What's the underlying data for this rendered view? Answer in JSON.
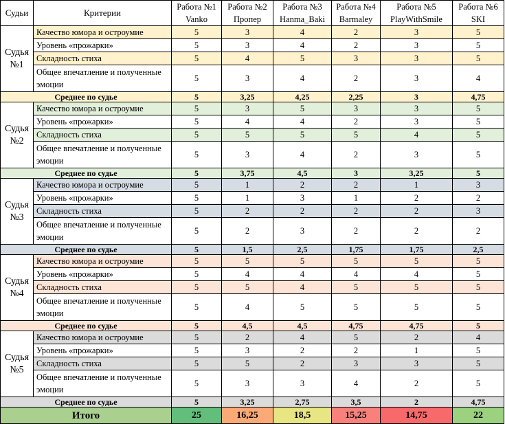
{
  "headers": {
    "judges_col": "Судьи",
    "criteria_col": "Критерии",
    "works": [
      {
        "title": "Работа №1",
        "author": "Vanko"
      },
      {
        "title": "Работа №2",
        "author": "Пропер"
      },
      {
        "title": "Работа №3",
        "author": "Hanma_Baki"
      },
      {
        "title": "Работа №4",
        "author": "Barmaley"
      },
      {
        "title": "Работа №5",
        "author": "PlayWithSmile"
      },
      {
        "title": "Работа №6",
        "author": "SKI"
      }
    ]
  },
  "criteria": [
    "Качество юмора и остроумие",
    "Уровень «прожарки»",
    "Складность стиха",
    "Общее впечатление и полученные эмоции"
  ],
  "average_label": "Среднее по судье",
  "judges": [
    {
      "line1": "Судья",
      "line2": "№1",
      "tint": "#fff2cc",
      "scores": [
        [
          "5",
          "3",
          "4",
          "2",
          "3",
          "5"
        ],
        [
          "5",
          "3",
          "4",
          "2",
          "3",
          "5"
        ],
        [
          "5",
          "4",
          "5",
          "3",
          "3",
          "5"
        ],
        [
          "5",
          "3",
          "4",
          "2",
          "3",
          "4"
        ]
      ],
      "average": [
        "5",
        "3,25",
        "4,25",
        "2,25",
        "3",
        "4,75"
      ]
    },
    {
      "line1": "Судья",
      "line2": "№2",
      "tint": "#e2efda",
      "scores": [
        [
          "5",
          "3",
          "5",
          "3",
          "3",
          "5"
        ],
        [
          "5",
          "4",
          "4",
          "2",
          "3",
          "5"
        ],
        [
          "5",
          "5",
          "5",
          "5",
          "4",
          "5"
        ],
        [
          "5",
          "3",
          "4",
          "2",
          "3",
          "5"
        ]
      ],
      "average": [
        "5",
        "3,75",
        "4,5",
        "3",
        "3,25",
        "5"
      ]
    },
    {
      "line1": "Судья",
      "line2": "№3",
      "tint": "#d6dce4",
      "scores": [
        [
          "5",
          "1",
          "2",
          "2",
          "1",
          "3"
        ],
        [
          "5",
          "1",
          "3",
          "1",
          "2",
          "2"
        ],
        [
          "5",
          "2",
          "2",
          "2",
          "2",
          "3"
        ],
        [
          "5",
          "2",
          "3",
          "2",
          "2",
          "2"
        ]
      ],
      "average": [
        "5",
        "1,5",
        "2,5",
        "1,75",
        "1,75",
        "2,5"
      ]
    },
    {
      "line1": "Судья",
      "line2": "№4",
      "tint": "#fce4d6",
      "scores": [
        [
          "5",
          "5",
          "5",
          "5",
          "5",
          "5"
        ],
        [
          "5",
          "4",
          "4",
          "4",
          "4",
          "5"
        ],
        [
          "5",
          "5",
          "4",
          "5",
          "5",
          "5"
        ],
        [
          "5",
          "4",
          "5",
          "5",
          "5",
          "5"
        ]
      ],
      "average": [
        "5",
        "4,5",
        "4,5",
        "4,75",
        "4,75",
        "5"
      ]
    },
    {
      "line1": "Судья",
      "line2": "№5",
      "tint": "#dbdbdb",
      "scores": [
        [
          "5",
          "2",
          "4",
          "5",
          "2",
          "4"
        ],
        [
          "5",
          "3",
          "2",
          "2",
          "1",
          "5"
        ],
        [
          "5",
          "5",
          "2",
          "3",
          "3",
          "5"
        ],
        [
          "5",
          "3",
          "3",
          "4",
          "2",
          "5"
        ]
      ],
      "average": [
        "5",
        "3,25",
        "2,75",
        "3,5",
        "2",
        "4,75"
      ]
    }
  ],
  "total": {
    "label": "Итого",
    "label_color": "#a9d08e",
    "values": [
      "25",
      "16,25",
      "18,5",
      "15,25",
      "14,75",
      "22"
    ],
    "colors": [
      "#63be7b",
      "#fbaa77",
      "#e8e583",
      "#f8827b",
      "#f8696b",
      "#9bd17f"
    ]
  }
}
